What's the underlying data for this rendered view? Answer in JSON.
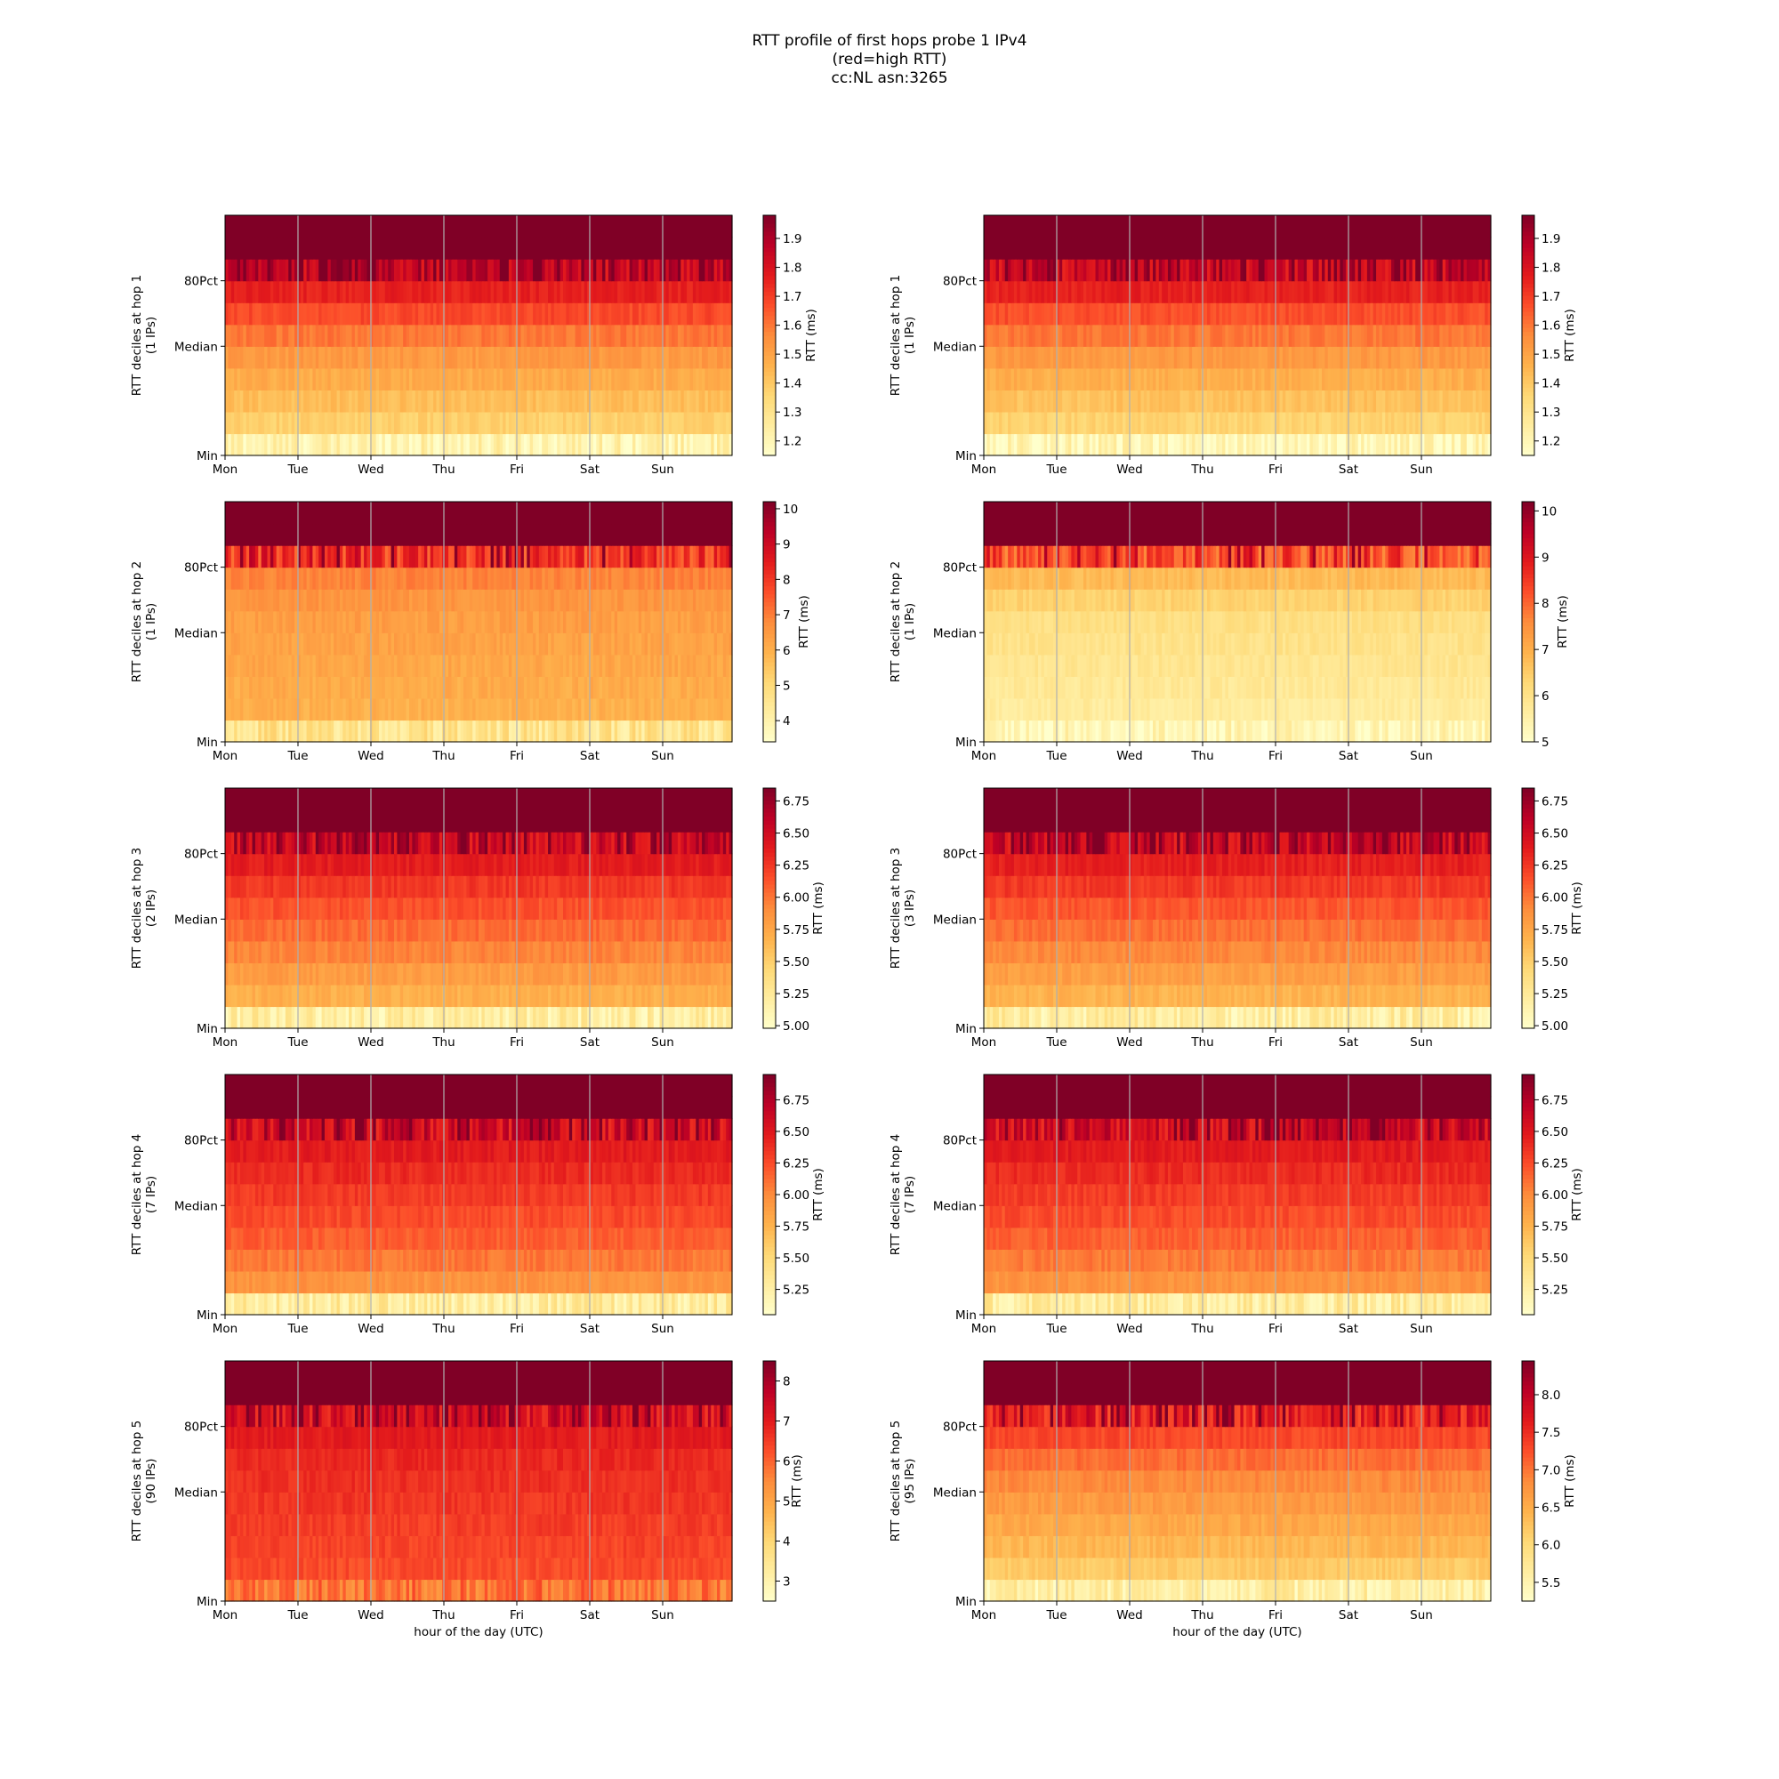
{
  "title_lines": [
    "RTT profile of first hops probe 1 IPv4",
    "(red=high RTT)",
    "cc:NL asn:3265"
  ],
  "colormap": {
    "name": "YlOrRd",
    "stops": [
      "#ffffcc",
      "#ffeda0",
      "#fed976",
      "#feb24c",
      "#fd8d3c",
      "#fc4e2a",
      "#e31a1c",
      "#bd0026",
      "#800026"
    ]
  },
  "chart_data": [
    {
      "type": "heatmap",
      "column": "left",
      "row": 1,
      "ylabel": [
        "RTT deciles at hop 1",
        "(1 IPs)"
      ],
      "x_ticks": [
        "Mon",
        "Tue",
        "Wed",
        "Thu",
        "Fri",
        "Sat",
        "Sun"
      ],
      "xlabel": "",
      "y_ticks": [
        "Min",
        "Median",
        "80Pct"
      ],
      "colorbar_label": "RTT (ms)",
      "colorbar_range": [
        1.15,
        1.98
      ],
      "colorbar_ticks": [
        "1.2",
        "1.3",
        "1.4",
        "1.5",
        "1.6",
        "1.7",
        "1.8",
        "1.9"
      ],
      "decile_levels_ms": [
        1.22,
        1.38,
        1.43,
        1.48,
        1.53,
        1.6,
        1.68,
        1.76,
        1.86,
        1.98,
        1.98
      ]
    },
    {
      "type": "heatmap",
      "column": "right",
      "row": 1,
      "ylabel": [
        "RTT deciles at hop 1",
        "(1 IPs)"
      ],
      "x_ticks": [
        "Mon",
        "Tue",
        "Wed",
        "Thu",
        "Fri",
        "Sat",
        "Sun"
      ],
      "xlabel": "",
      "y_ticks": [
        "Min",
        "Median",
        "80Pct"
      ],
      "colorbar_label": "RTT (ms)",
      "colorbar_range": [
        1.15,
        1.98
      ],
      "colorbar_ticks": [
        "1.2",
        "1.3",
        "1.4",
        "1.5",
        "1.6",
        "1.7",
        "1.8",
        "1.9"
      ],
      "decile_levels_ms": [
        1.2,
        1.37,
        1.42,
        1.47,
        1.53,
        1.6,
        1.67,
        1.76,
        1.85,
        1.98,
        1.98
      ]
    },
    {
      "type": "heatmap",
      "column": "left",
      "row": 2,
      "ylabel": [
        "RTT deciles at hop 2",
        "(1 IPs)"
      ],
      "x_ticks": [
        "Mon",
        "Tue",
        "Wed",
        "Thu",
        "Fri",
        "Sat",
        "Sun"
      ],
      "xlabel": "",
      "y_ticks": [
        "Min",
        "Median",
        "80Pct"
      ],
      "colorbar_label": "RTT (ms)",
      "colorbar_range": [
        3.4,
        10.2
      ],
      "colorbar_ticks": [
        "4",
        "5",
        "6",
        "7",
        "8",
        "9",
        "10"
      ],
      "decile_levels_ms": [
        4.6,
        6.0,
        6.1,
        6.2,
        6.3,
        6.4,
        6.6,
        6.9,
        8.0,
        10.2,
        10.2
      ]
    },
    {
      "type": "heatmap",
      "column": "right",
      "row": 2,
      "ylabel": [
        "RTT deciles at hop 2",
        "(1 IPs)"
      ],
      "x_ticks": [
        "Mon",
        "Tue",
        "Wed",
        "Thu",
        "Fri",
        "Sat",
        "Sun"
      ],
      "xlabel": "",
      "y_ticks": [
        "Min",
        "Median",
        "80Pct"
      ],
      "colorbar_label": "RTT (ms)",
      "colorbar_range": [
        5.0,
        10.2
      ],
      "colorbar_ticks": [
        "5",
        "6",
        "7",
        "8",
        "9",
        "10"
      ],
      "decile_levels_ms": [
        5.3,
        5.7,
        5.8,
        5.9,
        6.0,
        6.1,
        6.4,
        6.8,
        8.2,
        10.2,
        10.2
      ]
    },
    {
      "type": "heatmap",
      "column": "left",
      "row": 3,
      "ylabel": [
        "RTT deciles at hop 3",
        "(2 IPs)"
      ],
      "x_ticks": [
        "Mon",
        "Tue",
        "Wed",
        "Thu",
        "Fri",
        "Sat",
        "Sun"
      ],
      "xlabel": "",
      "y_ticks": [
        "Min",
        "Median",
        "80Pct"
      ],
      "colorbar_label": "RTT (ms)",
      "colorbar_range": [
        4.98,
        6.85
      ],
      "colorbar_ticks": [
        "5.00",
        "5.25",
        "5.50",
        "5.75",
        "6.00",
        "6.25",
        "6.50",
        "6.75"
      ],
      "decile_levels_ms": [
        5.2,
        5.7,
        5.82,
        5.94,
        6.04,
        6.14,
        6.25,
        6.38,
        6.55,
        6.85,
        6.85
      ]
    },
    {
      "type": "heatmap",
      "column": "right",
      "row": 3,
      "ylabel": [
        "RTT deciles at hop 3",
        "(3 IPs)"
      ],
      "x_ticks": [
        "Mon",
        "Tue",
        "Wed",
        "Thu",
        "Fri",
        "Sat",
        "Sun"
      ],
      "xlabel": "",
      "y_ticks": [
        "Min",
        "Median",
        "80Pct"
      ],
      "colorbar_label": "RTT (ms)",
      "colorbar_range": [
        4.98,
        6.85
      ],
      "colorbar_ticks": [
        "5.00",
        "5.25",
        "5.50",
        "5.75",
        "6.00",
        "6.25",
        "6.50",
        "6.75"
      ],
      "decile_levels_ms": [
        5.2,
        5.68,
        5.8,
        5.92,
        6.02,
        6.12,
        6.24,
        6.36,
        6.55,
        6.85,
        6.85
      ]
    },
    {
      "type": "heatmap",
      "column": "left",
      "row": 4,
      "ylabel": [
        "RTT deciles at hop 4",
        "(7 IPs)"
      ],
      "x_ticks": [
        "Mon",
        "Tue",
        "Wed",
        "Thu",
        "Fri",
        "Sat",
        "Sun"
      ],
      "xlabel": "",
      "y_ticks": [
        "Min",
        "Median",
        "80Pct"
      ],
      "colorbar_label": "RTT (ms)",
      "colorbar_range": [
        5.05,
        6.95
      ],
      "colorbar_ticks": [
        "5.25",
        "5.50",
        "5.75",
        "6.00",
        "6.25",
        "6.50",
        "6.75"
      ],
      "decile_levels_ms": [
        5.3,
        5.95,
        6.08,
        6.18,
        6.26,
        6.33,
        6.4,
        6.48,
        6.6,
        6.95,
        6.95
      ]
    },
    {
      "type": "heatmap",
      "column": "right",
      "row": 4,
      "ylabel": [
        "RTT deciles at hop 4",
        "(7 IPs)"
      ],
      "x_ticks": [
        "Mon",
        "Tue",
        "Wed",
        "Thu",
        "Fri",
        "Sat",
        "Sun"
      ],
      "xlabel": "",
      "y_ticks": [
        "Min",
        "Median",
        "80Pct"
      ],
      "colorbar_label": "RTT (ms)",
      "colorbar_range": [
        5.05,
        6.95
      ],
      "colorbar_ticks": [
        "5.25",
        "5.50",
        "5.75",
        "6.00",
        "6.25",
        "6.50",
        "6.75"
      ],
      "decile_levels_ms": [
        5.3,
        5.95,
        6.07,
        6.17,
        6.25,
        6.32,
        6.4,
        6.48,
        6.6,
        6.95,
        6.95
      ]
    },
    {
      "type": "heatmap",
      "column": "left",
      "row": 5,
      "ylabel": [
        "RTT deciles at hop 5",
        "(90 IPs)"
      ],
      "x_ticks": [
        "Mon",
        "Tue",
        "Wed",
        "Thu",
        "Fri",
        "Sat",
        "Sun"
      ],
      "xlabel": "hour of the day (UTC)",
      "y_ticks": [
        "Min",
        "Median",
        "80Pct"
      ],
      "colorbar_label": "RTT (ms)",
      "colorbar_range": [
        2.5,
        8.5
      ],
      "colorbar_ticks": [
        "3",
        "4",
        "5",
        "6",
        "7",
        "8"
      ],
      "decile_levels_ms": [
        5.8,
        6.3,
        6.4,
        6.5,
        6.6,
        6.7,
        6.8,
        7.0,
        7.3,
        8.5,
        8.5
      ]
    },
    {
      "type": "heatmap",
      "column": "right",
      "row": 5,
      "ylabel": [
        "RTT deciles at hop 5",
        "(95 IPs)"
      ],
      "x_ticks": [
        "Mon",
        "Tue",
        "Wed",
        "Thu",
        "Fri",
        "Sat",
        "Sun"
      ],
      "xlabel": "hour of the day (UTC)",
      "y_ticks": [
        "Min",
        "Median",
        "80Pct"
      ],
      "colorbar_label": "RTT (ms)",
      "colorbar_range": [
        5.25,
        8.45
      ],
      "colorbar_ticks": [
        "5.5",
        "6.0",
        "6.5",
        "7.0",
        "7.5",
        "8.0"
      ],
      "decile_levels_ms": [
        5.6,
        6.2,
        6.4,
        6.55,
        6.7,
        6.85,
        7.05,
        7.3,
        7.6,
        8.45,
        8.45
      ]
    }
  ]
}
